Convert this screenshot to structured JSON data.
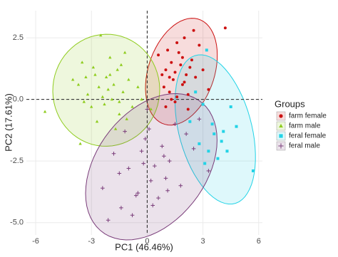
{
  "chart_data": {
    "type": "scatter",
    "x_label": "PC1 (46.46%)",
    "y_label": "PC2 (17.61%)",
    "xlim": [
      -6.5,
      6.2
    ],
    "ylim": [
      -5.5,
      3.6
    ],
    "xticks": [
      -6,
      -3,
      0,
      3,
      6
    ],
    "yticks": [
      -5.0,
      -2.5,
      0.0,
      2.5
    ],
    "ytick_labels_fmt": null,
    "grid": true,
    "reference_lines": {
      "x": 0,
      "y": 0
    },
    "legend_title": "Groups",
    "legend_position": "right",
    "series": [
      {
        "name": "farm female",
        "color": "#cc1111",
        "marker": "circle",
        "x": [
          0.6,
          0.9,
          1.0,
          1.1,
          1.2,
          1.3,
          1.4,
          1.5,
          1.6,
          1.7,
          1.8,
          1.9,
          2.0,
          2.1,
          2.2,
          2.4,
          2.6,
          2.8,
          3.0,
          3.3,
          1.0,
          1.3,
          1.6,
          2.0,
          2.3,
          0.8,
          1.5,
          1.9,
          2.5,
          1.2,
          4.2,
          2.2
        ],
        "values": [
          1.8,
          0.5,
          1.2,
          2.0,
          0.3,
          1.5,
          0.8,
          1.1,
          0.1,
          1.9,
          1.4,
          0.6,
          2.5,
          1.0,
          0.2,
          1.6,
          0.9,
          2.2,
          1.2,
          0.4,
          -0.3,
          0.0,
          2.3,
          0.7,
          1.3,
          1.0,
          -0.1,
          1.7,
          2.8,
          0.9,
          2.9,
          -0.4
        ]
      },
      {
        "name": "farm male",
        "color": "#8fcc1e",
        "marker": "triangle",
        "x": [
          -5.5,
          -4.0,
          -3.5,
          -3.2,
          -3.0,
          -2.8,
          -2.6,
          -2.5,
          -2.3,
          -2.2,
          -2.0,
          -1.9,
          -1.8,
          -1.6,
          -1.5,
          -1.3,
          -1.2,
          -1.0,
          -0.8,
          -0.5,
          -3.3,
          -2.7,
          -2.1,
          -1.7,
          -1.4,
          -2.4,
          -3.6,
          -0.3,
          -2.9,
          -1.1,
          -3.4,
          -3.7,
          -2.0,
          0.2,
          -1.5
        ],
        "values": [
          -0.5,
          0.8,
          1.5,
          0.2,
          -0.3,
          1.0,
          0.5,
          2.6,
          -0.2,
          0.9,
          1.7,
          0.0,
          0.6,
          1.2,
          -0.6,
          0.3,
          1.9,
          0.8,
          -0.3,
          0.5,
          0.9,
          -0.9,
          0.4,
          -1.2,
          1.4,
          0.1,
          -1.8,
          0.0,
          1.3,
          -0.8,
          -0.1,
          0.6,
          1.0,
          -0.4,
          -0.1
        ]
      },
      {
        "name": "feral female",
        "color": "#22d3e6",
        "marker": "square",
        "x": [
          2.3,
          2.8,
          3.0,
          3.2,
          3.5,
          3.6,
          3.8,
          4.0,
          4.3,
          4.5,
          4.8,
          5.7,
          3.1,
          2.6,
          4.1,
          3.3
        ],
        "values": [
          -0.9,
          -1.8,
          -0.2,
          2.0,
          -1.0,
          -1.4,
          -2.4,
          -1.7,
          -2.1,
          -0.3,
          -1.1,
          -2.9,
          -2.6,
          0.3,
          -1.3,
          -2.1
        ]
      },
      {
        "name": "feral male",
        "color": "#7a3d7a",
        "marker": "plus",
        "x": [
          -2.4,
          -2.1,
          -1.8,
          -1.5,
          -1.2,
          -1.0,
          -0.8,
          -0.5,
          -0.3,
          -0.1,
          0.0,
          0.2,
          0.4,
          0.6,
          0.8,
          1.0,
          1.2,
          1.5,
          1.8,
          2.1,
          2.5,
          3.3,
          -0.6,
          0.3,
          0.9,
          -1.4,
          0.1,
          1.1,
          -0.2,
          2.8
        ],
        "values": [
          -3.6,
          -4.9,
          -2.2,
          -3.0,
          -1.3,
          -2.8,
          -4.7,
          -3.8,
          -2.1,
          -1.6,
          -0.4,
          -3.3,
          -2.7,
          -4.0,
          -1.9,
          -3.2,
          -2.5,
          -1.0,
          -3.5,
          -1.4,
          -2.0,
          -2.9,
          -3.9,
          -4.3,
          -2.3,
          -4.4,
          -1.2,
          -3.7,
          -2.6,
          -0.8
        ]
      }
    ]
  }
}
